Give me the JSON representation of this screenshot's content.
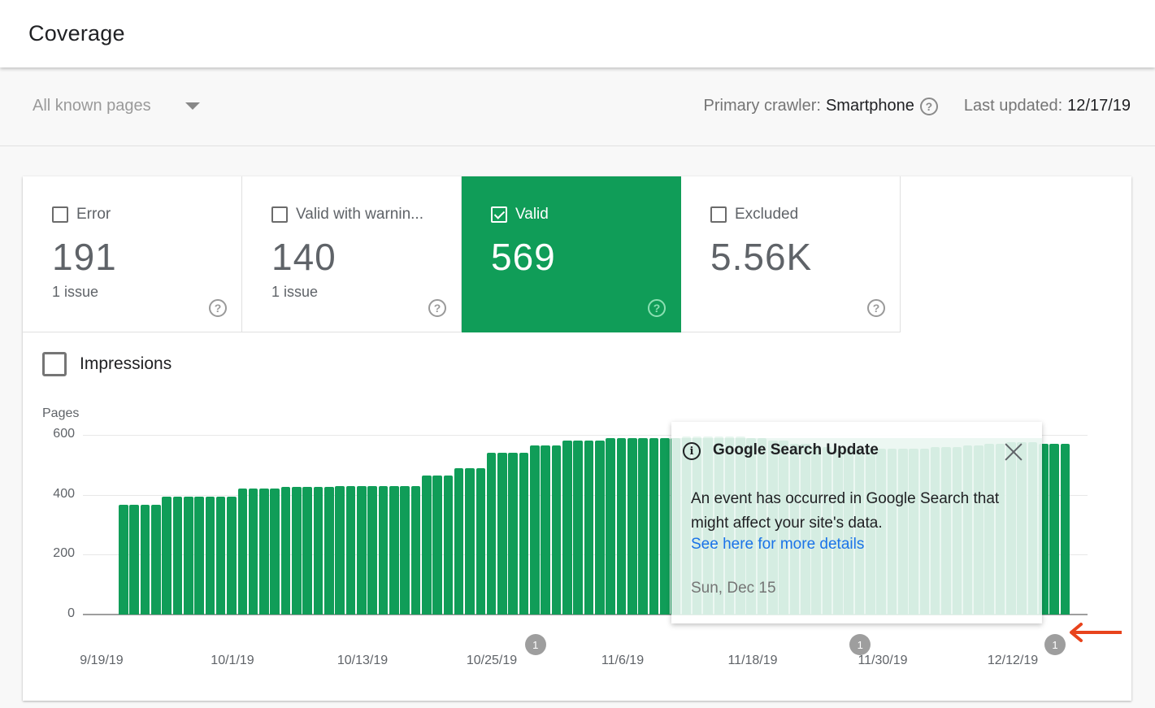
{
  "header": {
    "title": "Coverage"
  },
  "filter": {
    "dropdown_value": "All known pages",
    "primary_crawler_label": "Primary crawler:",
    "primary_crawler_value": "Smartphone",
    "last_updated_label": "Last updated:",
    "last_updated_value": "12/17/19"
  },
  "tiles": [
    {
      "label": "Error",
      "count": "191",
      "sub": "1 issue",
      "selected": false
    },
    {
      "label": "Valid with warnin...",
      "count": "140",
      "sub": "1 issue",
      "selected": false
    },
    {
      "label": "Valid",
      "count": "569",
      "sub": "",
      "selected": true
    },
    {
      "label": "Excluded",
      "count": "5.56K",
      "sub": "",
      "selected": false
    }
  ],
  "impressions": {
    "label": "Impressions",
    "checked": false
  },
  "colors": {
    "valid_green": "#109d58",
    "link_blue": "#1a73e8",
    "annotation_arrow": "#e8431c"
  },
  "chart_data": {
    "type": "bar",
    "title": "",
    "ylabel": "Pages",
    "xlabel": "",
    "ylim": [
      0,
      600
    ],
    "yticks": [
      0,
      200,
      400,
      600
    ],
    "grid": true,
    "x_tick_labels": [
      "9/19/19",
      "10/1/19",
      "10/13/19",
      "10/25/19",
      "11/6/19",
      "11/18/19",
      "11/30/19",
      "12/12/19"
    ],
    "start_date": "9/19/19",
    "series": [
      {
        "name": "Valid",
        "color": "#109d58",
        "values": [
          367,
          367,
          367,
          367,
          395,
          395,
          395,
          395,
          395,
          395,
          395,
          420,
          420,
          420,
          420,
          425,
          425,
          425,
          425,
          425,
          430,
          430,
          430,
          430,
          430,
          430,
          430,
          430,
          465,
          465,
          465,
          490,
          490,
          490,
          540,
          540,
          540,
          540,
          565,
          565,
          565,
          580,
          580,
          580,
          580,
          590,
          590,
          590,
          590,
          590,
          590,
          590,
          595,
          595,
          595,
          595,
          595,
          595,
          590,
          590,
          580,
          580,
          570,
          570,
          560,
          560,
          555,
          555,
          555,
          555,
          555,
          555,
          555,
          555,
          555,
          560,
          560,
          560,
          565,
          565,
          570,
          570,
          575,
          575,
          575,
          569,
          569,
          569
        ]
      }
    ],
    "annotations": [
      {
        "label": "1",
        "x_index": 38
      },
      {
        "label": "1",
        "x_index": 68
      },
      {
        "label": "1",
        "x_index": 86
      }
    ]
  },
  "tooltip": {
    "title": "Google Search Update",
    "body": "An event has occurred in Google Search that might affect your site's data.",
    "link": "See here for more details",
    "date": "Sun, Dec 15"
  }
}
